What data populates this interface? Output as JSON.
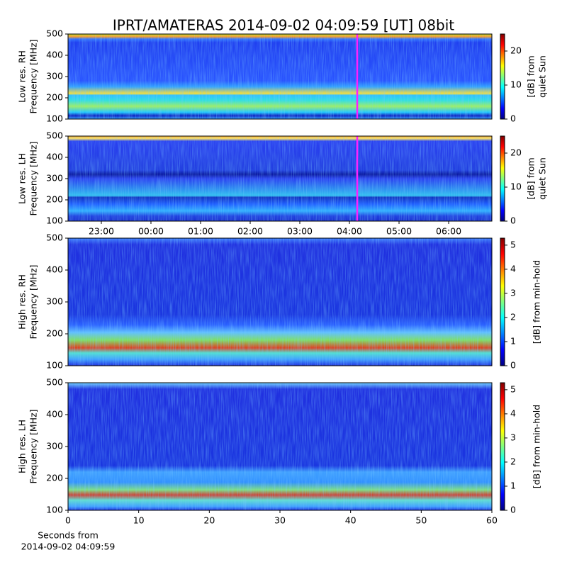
{
  "title": "IPRT/AMATERAS 2014-09-02 04:09:59 [UT]   08bit",
  "chart_data": [
    {
      "type": "heatmap",
      "ylabel": [
        "Low res. RH",
        "Frequency [MHz]"
      ],
      "ylim": [
        100,
        500
      ],
      "yticks": [
        100,
        200,
        300,
        400,
        500
      ],
      "xlim": [
        -1.671,
        6.871
      ],
      "colormap": "jet",
      "colorbar": {
        "label": [
          "[dB] from",
          "quiet Sun"
        ],
        "lim": [
          0,
          25
        ],
        "ticks": [
          0,
          10,
          20
        ]
      }
    },
    {
      "type": "heatmap",
      "ylabel": [
        "Low res. LH",
        "Frequency [MHz]"
      ],
      "ylim": [
        100,
        500
      ],
      "yticks": [
        100,
        200,
        300,
        400,
        500
      ],
      "xlim": [
        -1.671,
        6.871
      ],
      "xticks": [
        {
          "value": -1,
          "label": "23:00"
        },
        {
          "value": 0,
          "label": "00:00"
        },
        {
          "value": 1,
          "label": "01:00"
        },
        {
          "value": 2,
          "label": "02:00"
        },
        {
          "value": 3,
          "label": "03:00"
        },
        {
          "value": 4,
          "label": "04:00"
        },
        {
          "value": 5,
          "label": "05:00"
        },
        {
          "value": 6,
          "label": "06:00"
        }
      ],
      "colormap": "jet",
      "colorbar": {
        "label": [
          "[dB] from",
          "quiet Sun"
        ],
        "lim": [
          0,
          25
        ],
        "ticks": [
          0,
          10,
          20
        ]
      }
    },
    {
      "type": "heatmap",
      "ylabel": [
        "High res. RH",
        "Frequency [MHz]"
      ],
      "ylim": [
        100,
        500
      ],
      "yticks": [
        100,
        200,
        300,
        400,
        500
      ],
      "xlim": [
        0,
        60
      ],
      "colormap": "jet",
      "colorbar": {
        "label": [
          "[dB] from min-hold"
        ],
        "lim": [
          0,
          5.29
        ],
        "ticks": [
          0,
          1,
          2,
          3,
          4,
          5
        ]
      }
    },
    {
      "type": "heatmap",
      "ylabel": [
        "High res. LH",
        "Frequency [MHz]"
      ],
      "ylim": [
        100,
        500
      ],
      "yticks": [
        100,
        200,
        300,
        400,
        500
      ],
      "xlim": [
        0,
        60
      ],
      "xticks": [
        0,
        10,
        20,
        30,
        40,
        50,
        60
      ],
      "xlabel": [
        "Seconds from",
        "2014-09-02 04:09:59"
      ],
      "colormap": "jet",
      "colorbar": {
        "label": [
          "[dB] from min-hold"
        ],
        "lim": [
          0,
          5.29
        ],
        "ticks": [
          0,
          1,
          2,
          3,
          4,
          5
        ]
      }
    }
  ]
}
